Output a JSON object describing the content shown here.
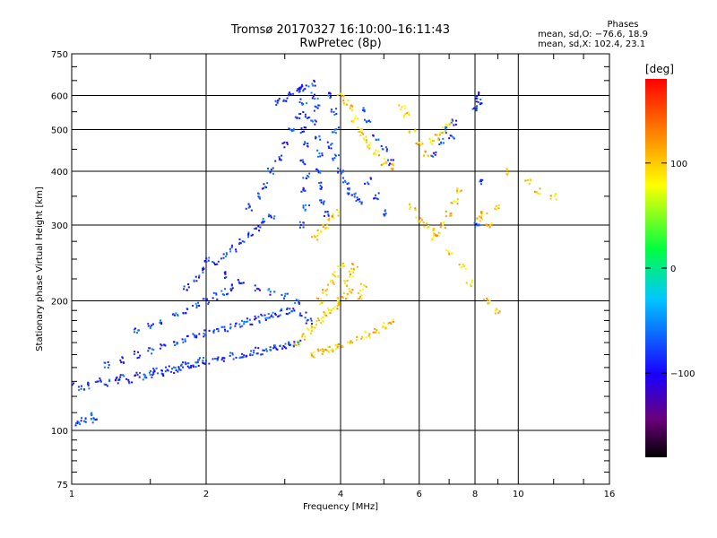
{
  "header": {
    "title_line1": "Tromsø 20170327 16:10:00–16:11:43",
    "title_line2": "RwPretec (8p)"
  },
  "stats": {
    "heading": "Phases",
    "o_line": "mean, sd,O: −76.6, 18.9",
    "x_line": "mean, sd,X: 102.4, 23.1"
  },
  "colorbar": {
    "label": "[deg]",
    "ticks": [
      {
        "value": 100,
        "label": "100"
      },
      {
        "value": 0,
        "label": "0"
      },
      {
        "value": -100,
        "label": "−100"
      }
    ],
    "range": [
      -180,
      180
    ],
    "colors": [
      "#000000",
      "#6a007a",
      "#1a00ff",
      "#00c8ff",
      "#00ff40",
      "#ffff00",
      "#ff8000",
      "#ff0000"
    ]
  },
  "chart_data": {
    "type": "scatter",
    "title": "Tromsø 20170327 16:10:00–16:11:43",
    "subtitle": "RwPretec (8p)",
    "xlabel": "Frequency [MHz]",
    "ylabel": "Stationary phase Virtual Height [km]",
    "xscale": "log",
    "yscale": "log",
    "xlim": [
      1,
      16
    ],
    "ylim": [
      75,
      750
    ],
    "xticks": [
      1,
      2,
      4,
      6,
      8,
      10,
      16
    ],
    "xtick_labels": [
      "1",
      "2",
      "4",
      "6",
      "8",
      "10",
      "16"
    ],
    "yticks": [
      75,
      100,
      200,
      300,
      400,
      500,
      600,
      750
    ],
    "ytick_labels": [
      "75",
      "100",
      "200",
      "300",
      "400",
      "500",
      "600",
      "750"
    ],
    "grid": true,
    "color_variable": "phase [deg]",
    "series": [
      {
        "mode": "O",
        "phase": -80,
        "points": [
          [
            1.0,
            128
          ],
          [
            1.05,
            126
          ],
          [
            1.1,
            127
          ],
          [
            1.15,
            130
          ],
          [
            1.2,
            129
          ],
          [
            1.25,
            131
          ],
          [
            1.3,
            133
          ],
          [
            1.35,
            131
          ],
          [
            1.4,
            135
          ],
          [
            1.45,
            133
          ],
          [
            1.5,
            135
          ],
          [
            1.55,
            137
          ],
          [
            1.6,
            136
          ],
          [
            1.65,
            139
          ],
          [
            1.7,
            138
          ],
          [
            1.75,
            140
          ],
          [
            1.8,
            142
          ],
          [
            1.85,
            141
          ],
          [
            1.9,
            143
          ],
          [
            1.95,
            145
          ],
          [
            2.0,
            145
          ],
          [
            2.1,
            147
          ],
          [
            2.2,
            146
          ],
          [
            2.3,
            149
          ],
          [
            2.4,
            150
          ],
          [
            2.5,
            151
          ],
          [
            2.6,
            153
          ],
          [
            2.7,
            152
          ],
          [
            2.8,
            155
          ],
          [
            2.9,
            156
          ],
          [
            3.0,
            157
          ],
          [
            3.1,
            158
          ],
          [
            3.2,
            159
          ],
          [
            1.2,
            142
          ],
          [
            1.3,
            146
          ],
          [
            1.4,
            150
          ],
          [
            1.5,
            153
          ],
          [
            1.6,
            157
          ],
          [
            1.7,
            160
          ],
          [
            1.8,
            163
          ],
          [
            1.9,
            166
          ],
          [
            2.0,
            168
          ],
          [
            2.1,
            171
          ],
          [
            2.2,
            173
          ],
          [
            2.3,
            175
          ],
          [
            2.4,
            177
          ],
          [
            2.5,
            179
          ],
          [
            2.6,
            181
          ],
          [
            2.7,
            183
          ],
          [
            2.8,
            185
          ],
          [
            2.9,
            187
          ],
          [
            3.0,
            189
          ],
          [
            1.4,
            170
          ],
          [
            1.5,
            175
          ],
          [
            1.6,
            180
          ],
          [
            1.7,
            185
          ],
          [
            1.8,
            190
          ],
          [
            1.9,
            195
          ],
          [
            2.0,
            200
          ],
          [
            2.1,
            205
          ],
          [
            2.2,
            210
          ],
          [
            2.3,
            215
          ],
          [
            1.8,
            215
          ],
          [
            1.9,
            225
          ],
          [
            2.0,
            235
          ],
          [
            2.1,
            245
          ],
          [
            2.2,
            255
          ],
          [
            2.3,
            265
          ],
          [
            2.4,
            275
          ],
          [
            2.5,
            285
          ],
          [
            2.6,
            295
          ],
          [
            2.7,
            305
          ],
          [
            2.8,
            315
          ],
          [
            2.0,
            250
          ],
          [
            2.2,
            230
          ],
          [
            2.4,
            220
          ],
          [
            2.6,
            215
          ],
          [
            2.8,
            210
          ],
          [
            3.0,
            205
          ],
          [
            3.2,
            200
          ],
          [
            3.1,
            190
          ],
          [
            3.3,
            185
          ],
          [
            3.4,
            180
          ],
          [
            2.5,
            330
          ],
          [
            2.6,
            350
          ],
          [
            2.7,
            370
          ],
          [
            2.8,
            400
          ],
          [
            2.9,
            430
          ],
          [
            3.0,
            460
          ],
          [
            3.1,
            500
          ],
          [
            3.2,
            540
          ],
          [
            2.9,
            580
          ],
          [
            3.0,
            590
          ],
          [
            3.1,
            605
          ],
          [
            3.2,
            615
          ],
          [
            3.25,
            625
          ],
          [
            3.3,
            630
          ],
          [
            3.3,
            580
          ],
          [
            3.35,
            540
          ],
          [
            3.3,
            500
          ],
          [
            3.35,
            460
          ],
          [
            3.3,
            420
          ],
          [
            3.35,
            390
          ],
          [
            3.3,
            360
          ],
          [
            3.35,
            330
          ],
          [
            3.3,
            300
          ],
          [
            3.45,
            640
          ],
          [
            3.5,
            600
          ],
          [
            3.55,
            560
          ],
          [
            3.5,
            520
          ],
          [
            3.55,
            480
          ],
          [
            3.6,
            440
          ],
          [
            3.55,
            400
          ],
          [
            3.6,
            370
          ],
          [
            3.65,
            340
          ],
          [
            3.7,
            320
          ],
          [
            3.8,
            600
          ],
          [
            3.85,
            550
          ],
          [
            3.9,
            500
          ],
          [
            3.8,
            460
          ],
          [
            3.9,
            430
          ],
          [
            4.0,
            400
          ],
          [
            4.1,
            380
          ],
          [
            4.2,
            360
          ],
          [
            4.3,
            350
          ],
          [
            4.4,
            340
          ],
          [
            4.5,
            560
          ],
          [
            4.6,
            520
          ],
          [
            4.8,
            480
          ],
          [
            5.0,
            450
          ],
          [
            5.2,
            420
          ],
          [
            4.6,
            380
          ],
          [
            4.8,
            350
          ],
          [
            5.0,
            320
          ],
          [
            6.5,
            440
          ],
          [
            6.7,
            470
          ],
          [
            6.9,
            500
          ],
          [
            7.1,
            480
          ],
          [
            7.2,
            520
          ],
          [
            8.1,
            600
          ],
          [
            8.2,
            580
          ],
          [
            8.0,
            560
          ],
          [
            8.1,
            300
          ],
          [
            8.2,
            380
          ],
          [
            1.03,
            104
          ],
          [
            1.06,
            106
          ],
          [
            1.09,
            108
          ],
          [
            1.12,
            106
          ]
        ]
      },
      {
        "mode": "X",
        "phase": 100,
        "points": [
          [
            3.2,
            160
          ],
          [
            3.3,
            165
          ],
          [
            3.4,
            170
          ],
          [
            3.5,
            175
          ],
          [
            3.6,
            180
          ],
          [
            3.7,
            185
          ],
          [
            3.8,
            190
          ],
          [
            3.9,
            195
          ],
          [
            4.0,
            200
          ],
          [
            4.1,
            205
          ],
          [
            4.2,
            210
          ],
          [
            3.5,
            150
          ],
          [
            3.6,
            152
          ],
          [
            3.7,
            153
          ],
          [
            3.8,
            155
          ],
          [
            3.9,
            157
          ],
          [
            4.0,
            158
          ],
          [
            4.2,
            160
          ],
          [
            4.4,
            163
          ],
          [
            4.6,
            167
          ],
          [
            4.8,
            171
          ],
          [
            5.0,
            175
          ],
          [
            5.2,
            180
          ],
          [
            3.6,
            200
          ],
          [
            3.7,
            210
          ],
          [
            3.8,
            220
          ],
          [
            3.9,
            230
          ],
          [
            4.0,
            240
          ],
          [
            4.1,
            220
          ],
          [
            4.2,
            230
          ],
          [
            4.3,
            240
          ],
          [
            4.4,
            205
          ],
          [
            4.5,
            215
          ],
          [
            3.5,
            280
          ],
          [
            3.6,
            290
          ],
          [
            3.7,
            300
          ],
          [
            3.8,
            310
          ],
          [
            3.9,
            320
          ],
          [
            4.0,
            600
          ],
          [
            4.1,
            580
          ],
          [
            4.2,
            560
          ],
          [
            4.3,
            530
          ],
          [
            4.4,
            500
          ],
          [
            4.5,
            480
          ],
          [
            4.6,
            460
          ],
          [
            4.8,
            440
          ],
          [
            5.0,
            420
          ],
          [
            5.2,
            410
          ],
          [
            5.5,
            560
          ],
          [
            5.6,
            540
          ],
          [
            5.8,
            500
          ],
          [
            6.0,
            460
          ],
          [
            6.2,
            440
          ],
          [
            6.4,
            470
          ],
          [
            6.6,
            480
          ],
          [
            6.8,
            500
          ],
          [
            7.0,
            520
          ],
          [
            5.8,
            330
          ],
          [
            6.0,
            310
          ],
          [
            6.2,
            300
          ],
          [
            6.4,
            290
          ],
          [
            6.6,
            285
          ],
          [
            6.8,
            300
          ],
          [
            7.0,
            320
          ],
          [
            7.2,
            340
          ],
          [
            7.4,
            360
          ],
          [
            8.2,
            310
          ],
          [
            8.4,
            320
          ],
          [
            8.6,
            300
          ],
          [
            9.0,
            330
          ],
          [
            9.5,
            400
          ],
          [
            10.5,
            380
          ],
          [
            11.0,
            360
          ],
          [
            12.0,
            350
          ],
          [
            6.5,
            280
          ],
          [
            7.0,
            260
          ],
          [
            7.5,
            240
          ],
          [
            7.8,
            220
          ],
          [
            8.5,
            200
          ],
          [
            9.0,
            190
          ]
        ]
      }
    ]
  }
}
